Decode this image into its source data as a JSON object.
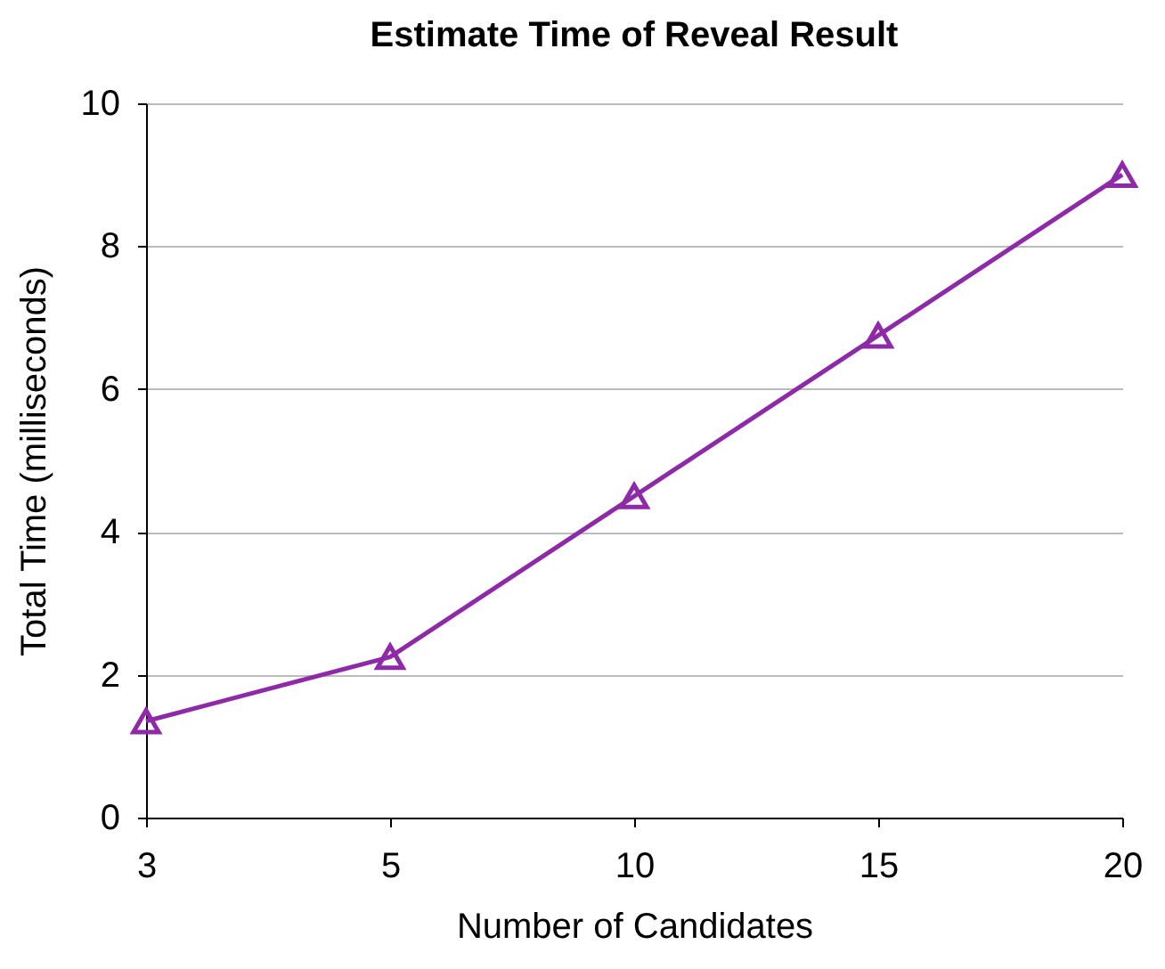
{
  "chart_data": {
    "type": "line",
    "title": "Estimate Time of Reveal Result",
    "xlabel": "Number of Candidates",
    "ylabel": "Total Time (milliseconds)",
    "categories": [
      "3",
      "5",
      "10",
      "15",
      "20"
    ],
    "series": [
      {
        "color": "#8e2aa8",
        "values": [
          1.35,
          2.25,
          4.5,
          6.75,
          9.0
        ]
      }
    ],
    "ylim": [
      0,
      10
    ],
    "yticks": [
      0,
      2,
      4,
      6,
      8,
      10
    ],
    "grid": "y",
    "marker": "triangle",
    "line_style": "solid"
  }
}
